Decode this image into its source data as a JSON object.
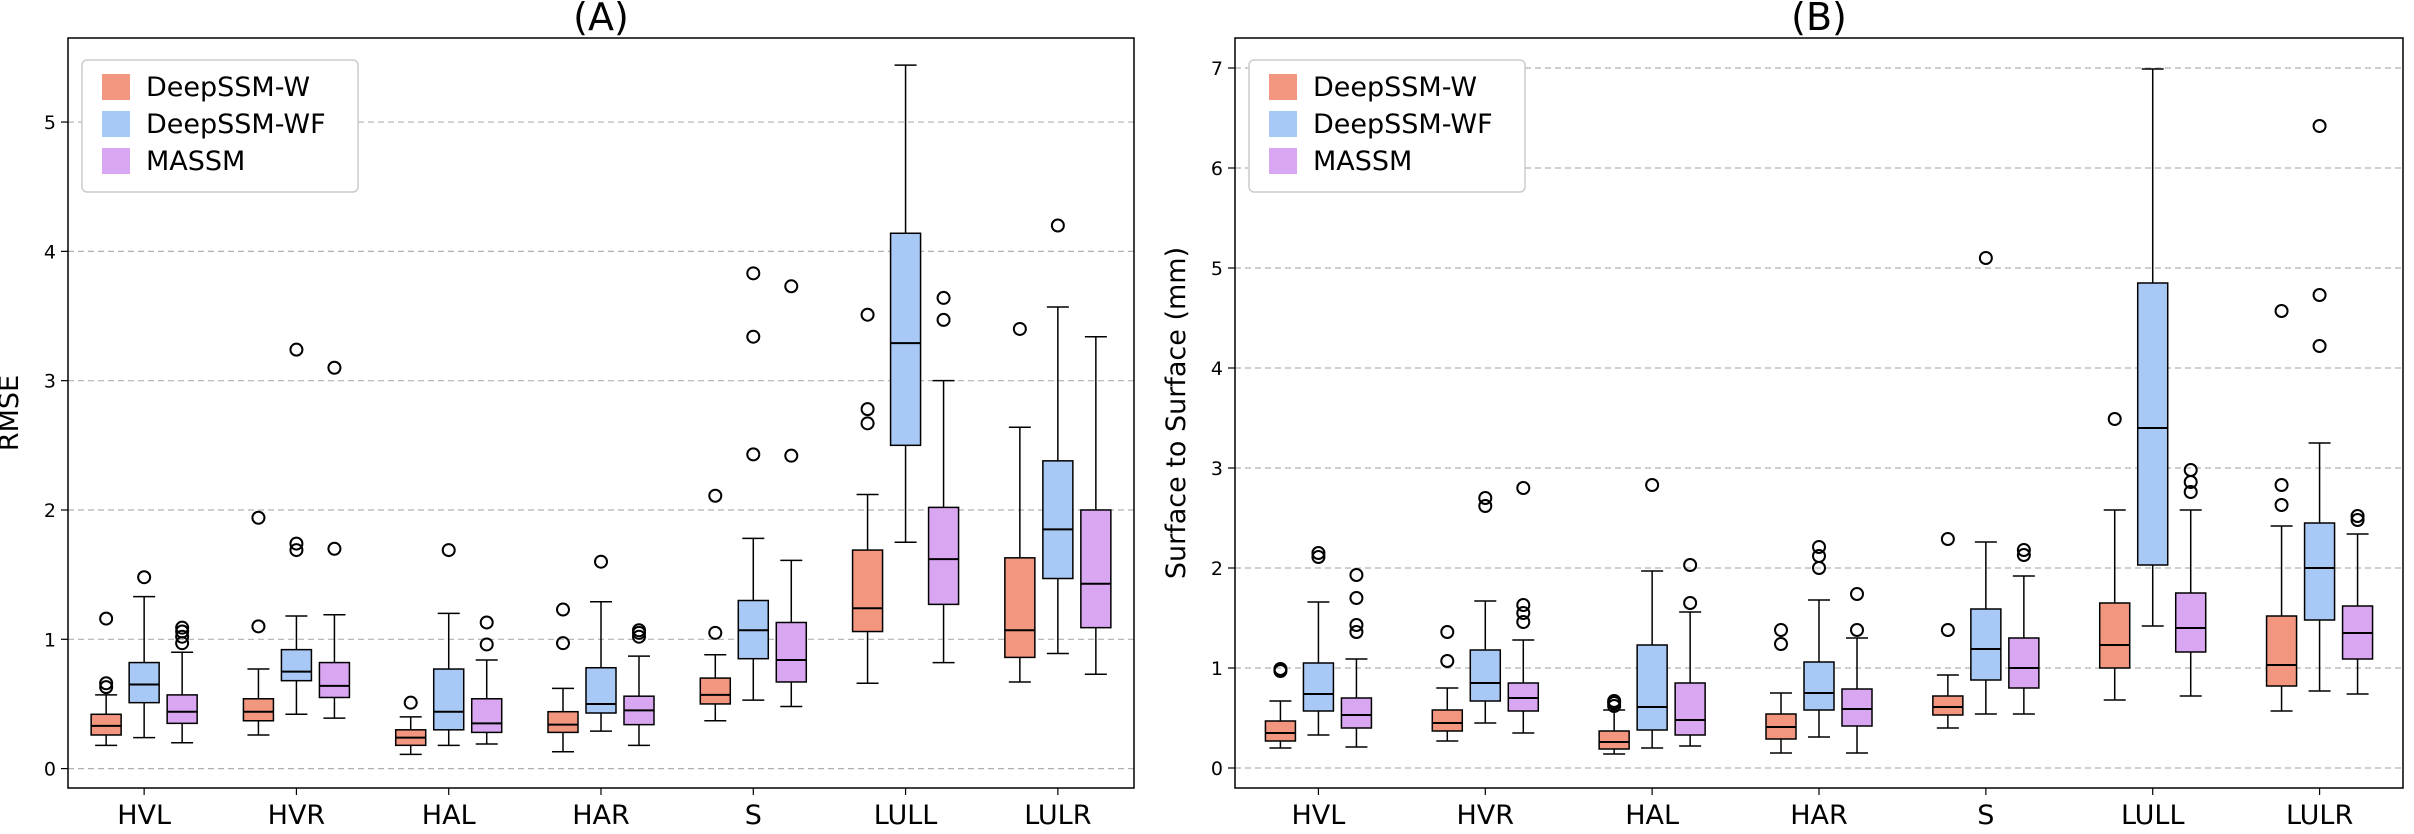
{
  "chart_data": [
    {
      "type": "box",
      "title": "(A)",
      "xlabel": "",
      "ylabel": "RMSE",
      "ylim": [
        -0.15,
        5.65
      ],
      "yticks": [
        0,
        1,
        2,
        3,
        4,
        5
      ],
      "grid": "y",
      "legend": "top-left",
      "categories": [
        "HVL",
        "HVR",
        "HAL",
        "HAR",
        "S",
        "LULL",
        "LULR"
      ],
      "series": [
        {
          "name": "DeepSSM-W",
          "color": "#f2967f",
          "boxes": [
            {
              "whislo": 0.18,
              "q1": 0.26,
              "med": 0.33,
              "q3": 0.42,
              "whishi": 0.57,
              "fliers": [
                0.63,
                0.66,
                1.16
              ]
            },
            {
              "whislo": 0.26,
              "q1": 0.37,
              "med": 0.44,
              "q3": 0.54,
              "whishi": 0.77,
              "fliers": [
                1.1,
                1.94
              ]
            },
            {
              "whislo": 0.11,
              "q1": 0.18,
              "med": 0.24,
              "q3": 0.3,
              "whishi": 0.4,
              "fliers": [
                0.51
              ]
            },
            {
              "whislo": 0.13,
              "q1": 0.28,
              "med": 0.34,
              "q3": 0.44,
              "whishi": 0.62,
              "fliers": [
                0.97,
                1.23
              ]
            },
            {
              "whislo": 0.37,
              "q1": 0.5,
              "med": 0.57,
              "q3": 0.7,
              "whishi": 0.88,
              "fliers": [
                1.05,
                2.11
              ]
            },
            {
              "whislo": 0.66,
              "q1": 1.06,
              "med": 1.24,
              "q3": 1.69,
              "whishi": 2.12,
              "fliers": [
                2.67,
                2.78,
                3.51
              ]
            },
            {
              "whislo": 0.67,
              "q1": 0.86,
              "med": 1.07,
              "q3": 1.63,
              "whishi": 2.64,
              "fliers": [
                3.4
              ]
            }
          ]
        },
        {
          "name": "DeepSSM-WF",
          "color": "#a8c8f5",
          "boxes": [
            {
              "whislo": 0.24,
              "q1": 0.51,
              "med": 0.65,
              "q3": 0.82,
              "whishi": 1.33,
              "fliers": [
                1.48
              ]
            },
            {
              "whislo": 0.42,
              "q1": 0.68,
              "med": 0.75,
              "q3": 0.92,
              "whishi": 1.18,
              "fliers": [
                1.69,
                1.74,
                3.24
              ]
            },
            {
              "whislo": 0.18,
              "q1": 0.3,
              "med": 0.44,
              "q3": 0.77,
              "whishi": 1.2,
              "fliers": [
                1.69
              ]
            },
            {
              "whislo": 0.29,
              "q1": 0.43,
              "med": 0.5,
              "q3": 0.78,
              "whishi": 1.29,
              "fliers": [
                1.6
              ]
            },
            {
              "whislo": 0.53,
              "q1": 0.85,
              "med": 1.07,
              "q3": 1.3,
              "whishi": 1.78,
              "fliers": [
                2.43,
                3.34,
                3.83
              ]
            },
            {
              "whislo": 1.75,
              "q1": 2.5,
              "med": 3.29,
              "q3": 4.14,
              "whishi": 5.44,
              "fliers": []
            },
            {
              "whislo": 0.89,
              "q1": 1.47,
              "med": 1.85,
              "q3": 2.38,
              "whishi": 3.57,
              "fliers": [
                4.2
              ]
            }
          ]
        },
        {
          "name": "MASSM",
          "color": "#d9a6f2",
          "boxes": [
            {
              "whislo": 0.2,
              "q1": 0.35,
              "med": 0.44,
              "q3": 0.57,
              "whishi": 0.9,
              "fliers": [
                0.97,
                1.02,
                1.06,
                1.09
              ]
            },
            {
              "whislo": 0.39,
              "q1": 0.55,
              "med": 0.64,
              "q3": 0.82,
              "whishi": 1.19,
              "fliers": [
                1.7,
                3.1
              ]
            },
            {
              "whislo": 0.19,
              "q1": 0.28,
              "med": 0.35,
              "q3": 0.54,
              "whishi": 0.84,
              "fliers": [
                0.96,
                1.13
              ]
            },
            {
              "whislo": 0.18,
              "q1": 0.34,
              "med": 0.45,
              "q3": 0.56,
              "whishi": 0.87,
              "fliers": [
                1.02,
                1.05,
                1.07
              ]
            },
            {
              "whislo": 0.48,
              "q1": 0.67,
              "med": 0.84,
              "q3": 1.13,
              "whishi": 1.61,
              "fliers": [
                2.42,
                3.73
              ]
            },
            {
              "whislo": 0.82,
              "q1": 1.27,
              "med": 1.62,
              "q3": 2.02,
              "whishi": 3.0,
              "fliers": [
                3.47,
                3.64
              ]
            },
            {
              "whislo": 0.73,
              "q1": 1.09,
              "med": 1.43,
              "q3": 2.0,
              "whishi": 3.34,
              "fliers": []
            }
          ]
        }
      ]
    },
    {
      "type": "box",
      "title": "(B)",
      "xlabel": "",
      "ylabel": "Surface to Surface (mm)",
      "ylim": [
        -0.2,
        7.3
      ],
      "yticks": [
        0,
        1,
        2,
        3,
        4,
        5,
        6,
        7
      ],
      "grid": "y",
      "legend": "top-left",
      "categories": [
        "HVL",
        "HVR",
        "HAL",
        "HAR",
        "S",
        "LULL",
        "LULR"
      ],
      "series": [
        {
          "name": "DeepSSM-W",
          "color": "#f2967f",
          "boxes": [
            {
              "whislo": 0.2,
              "q1": 0.27,
              "med": 0.35,
              "q3": 0.47,
              "whishi": 0.67,
              "fliers": [
                0.97,
                0.99
              ]
            },
            {
              "whislo": 0.27,
              "q1": 0.37,
              "med": 0.45,
              "q3": 0.58,
              "whishi": 0.8,
              "fliers": [
                1.07,
                1.36
              ]
            },
            {
              "whislo": 0.14,
              "q1": 0.19,
              "med": 0.26,
              "q3": 0.37,
              "whishi": 0.58,
              "fliers": [
                0.62,
                0.65,
                0.67
              ]
            },
            {
              "whislo": 0.15,
              "q1": 0.29,
              "med": 0.41,
              "q3": 0.54,
              "whishi": 0.75,
              "fliers": [
                1.24,
                1.38
              ]
            },
            {
              "whislo": 0.4,
              "q1": 0.53,
              "med": 0.61,
              "q3": 0.72,
              "whishi": 0.93,
              "fliers": [
                1.38,
                2.29
              ]
            },
            {
              "whislo": 0.68,
              "q1": 1.0,
              "med": 1.23,
              "q3": 1.65,
              "whishi": 2.58,
              "fliers": [
                3.49
              ]
            },
            {
              "whislo": 0.57,
              "q1": 0.82,
              "med": 1.03,
              "q3": 1.52,
              "whishi": 2.42,
              "fliers": [
                2.63,
                2.83,
                4.57
              ]
            }
          ]
        },
        {
          "name": "DeepSSM-WF",
          "color": "#a8c8f5",
          "boxes": [
            {
              "whislo": 0.33,
              "q1": 0.57,
              "med": 0.74,
              "q3": 1.05,
              "whishi": 1.66,
              "fliers": [
                2.11,
                2.15
              ]
            },
            {
              "whislo": 0.45,
              "q1": 0.67,
              "med": 0.85,
              "q3": 1.18,
              "whishi": 1.67,
              "fliers": [
                2.62,
                2.7
              ]
            },
            {
              "whislo": 0.2,
              "q1": 0.38,
              "med": 0.61,
              "q3": 1.23,
              "whishi": 1.97,
              "fliers": [
                2.83
              ]
            },
            {
              "whislo": 0.31,
              "q1": 0.58,
              "med": 0.75,
              "q3": 1.06,
              "whishi": 1.68,
              "fliers": [
                2.0,
                2.12,
                2.21
              ]
            },
            {
              "whislo": 0.54,
              "q1": 0.88,
              "med": 1.19,
              "q3": 1.59,
              "whishi": 2.26,
              "fliers": [
                5.1
              ]
            },
            {
              "whislo": 1.42,
              "q1": 2.03,
              "med": 3.4,
              "q3": 4.85,
              "whishi": 6.99,
              "fliers": []
            },
            {
              "whislo": 0.77,
              "q1": 1.48,
              "med": 2.0,
              "q3": 2.45,
              "whishi": 3.25,
              "fliers": [
                4.22,
                4.73,
                6.42
              ]
            }
          ]
        },
        {
          "name": "MASSM",
          "color": "#d9a6f2",
          "boxes": [
            {
              "whislo": 0.21,
              "q1": 0.4,
              "med": 0.53,
              "q3": 0.7,
              "whishi": 1.09,
              "fliers": [
                1.36,
                1.43,
                1.7,
                1.93
              ]
            },
            {
              "whislo": 0.35,
              "q1": 0.57,
              "med": 0.7,
              "q3": 0.85,
              "whishi": 1.28,
              "fliers": [
                1.46,
                1.55,
                1.63,
                2.8
              ]
            },
            {
              "whislo": 0.22,
              "q1": 0.33,
              "med": 0.48,
              "q3": 0.85,
              "whishi": 1.56,
              "fliers": [
                1.65,
                2.03
              ]
            },
            {
              "whislo": 0.15,
              "q1": 0.42,
              "med": 0.59,
              "q3": 0.79,
              "whishi": 1.3,
              "fliers": [
                1.38,
                1.74
              ]
            },
            {
              "whislo": 0.54,
              "q1": 0.8,
              "med": 1.0,
              "q3": 1.3,
              "whishi": 1.92,
              "fliers": [
                2.13,
                2.18
              ]
            },
            {
              "whislo": 0.72,
              "q1": 1.16,
              "med": 1.4,
              "q3": 1.75,
              "whishi": 2.58,
              "fliers": [
                2.76,
                2.86,
                2.98
              ]
            },
            {
              "whislo": 0.74,
              "q1": 1.09,
              "med": 1.35,
              "q3": 1.62,
              "whishi": 2.34,
              "fliers": [
                2.48,
                2.52
              ]
            }
          ]
        }
      ]
    }
  ]
}
